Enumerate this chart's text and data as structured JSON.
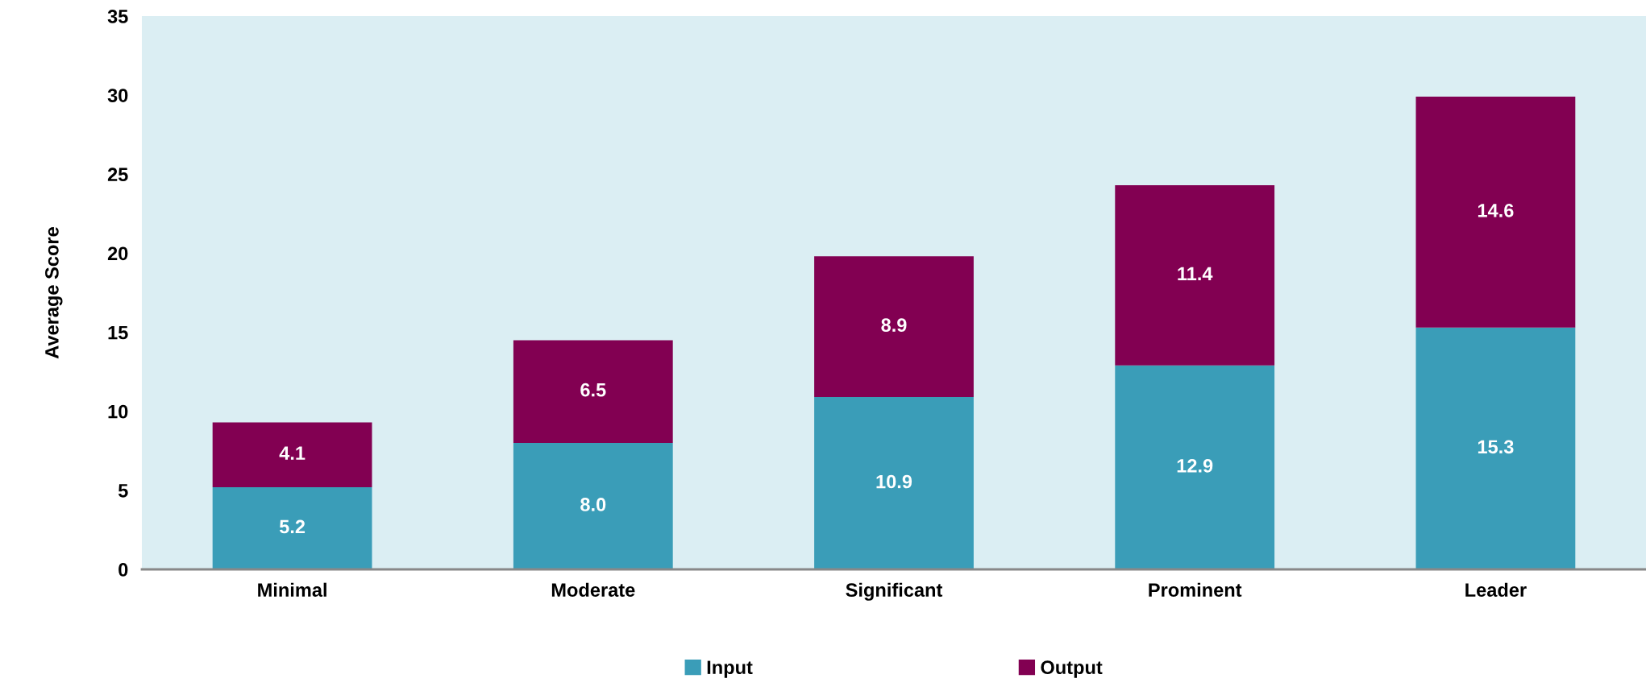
{
  "chart_data": {
    "type": "bar",
    "stacked": true,
    "ylabel": "Average Score",
    "categories": [
      "Minimal",
      "Moderate",
      "Significant",
      "Prominent",
      "Leader"
    ],
    "series": [
      {
        "name": "Input",
        "color": "#3a9db8",
        "values": [
          5.2,
          8.0,
          10.9,
          12.9,
          15.3
        ],
        "value_labels": [
          "5.2",
          "8.0",
          "10.9",
          "12.9",
          "15.3"
        ]
      },
      {
        "name": "Output",
        "color": "#820052",
        "values": [
          4.1,
          6.5,
          8.9,
          11.4,
          14.6
        ],
        "value_labels": [
          "4.1",
          "6.5",
          "8.9",
          "11.4",
          "14.6"
        ]
      }
    ],
    "ylim": [
      0,
      35
    ],
    "yticks": [
      0,
      5,
      10,
      15,
      20,
      25,
      30,
      35
    ],
    "grid": false,
    "legend": "bottom"
  }
}
